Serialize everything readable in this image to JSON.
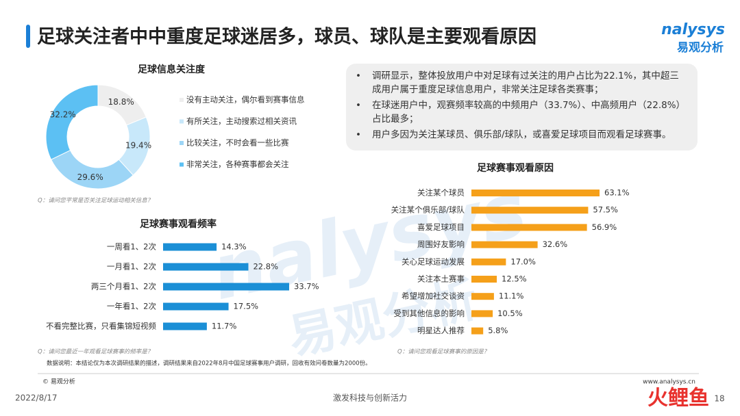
{
  "header": {
    "title": "足球关注者中中重度足球迷居多，球员、球队是主要观看原因",
    "logo_en": "nalysys",
    "logo_cn": "易观分析"
  },
  "bullets": [
    "调研显示，整体投放用户中对足球有过关注的用户占比为22.1%，其中超三成用户属于重度足球信息用户，非常关注足球各类赛事；",
    "在球迷用户中，观赛频率较高的中频用户（33.7%）、中高频用户（22.8%）占比最多；",
    "用户多因为关注某球员、俱乐部/球队，或喜爱足球项目而观看足球赛事。"
  ],
  "chart_data": [
    {
      "type": "donut",
      "title": "足球信息关注度",
      "categories": [
        "没有主动关注，偶尔看到赛事信息",
        "有所关注，主动搜索过相关资讯",
        "比较关注，不时会看一些比赛",
        "非常关注，各种赛事都会关注"
      ],
      "values": [
        18.8,
        19.4,
        29.6,
        32.2
      ],
      "value_labels": [
        "18.8%",
        "19.4%",
        "29.6%",
        "32.2%"
      ],
      "colors": [
        "#eeeeee",
        "#c8e8fa",
        "#9cd5f6",
        "#5cc0f3"
      ],
      "note": "Q：请问您平常是否关注足球运动相关信息？"
    },
    {
      "type": "hbar",
      "title": "足球赛事观看频率",
      "categories": [
        "一周看1、2次",
        "一月看1、2次",
        "两三个月看1、2次",
        "一年看1、2次",
        "不看完整比赛，只看集锦短视频"
      ],
      "values": [
        14.3,
        22.8,
        33.7,
        17.5,
        11.7
      ],
      "value_labels": [
        "14.3%",
        "22.8%",
        "33.7%",
        "17.5%",
        "11.7%"
      ],
      "color": "#1b8fd6",
      "note": "Q：请问您最近一年观看足球赛事的频率是？"
    },
    {
      "type": "hbar",
      "title": "足球赛事观看原因",
      "categories": [
        "关注某个球员",
        "关注某个俱乐部/球队",
        "喜爱足球项目",
        "周围好友影响",
        "关心足球运动发展",
        "关注本土赛事",
        "希望增加社交谈资",
        "受到其他信息的影响",
        "明星达人推荐"
      ],
      "values": [
        63.1,
        57.5,
        56.9,
        32.6,
        17.0,
        12.5,
        11.1,
        10.5,
        5.8
      ],
      "value_labels": [
        "63.1%",
        "57.5%",
        "56.9%",
        "32.6%",
        "17.0%",
        "12.5%",
        "11.1%",
        "10.5%",
        "5.8%"
      ],
      "color": "#f5a01a",
      "note": "Q：请问您观看足球赛事的原因是？"
    }
  ],
  "data_note": "数据说明：本结论仅为本次调研结果的描述，调研结果来自2022年8月中国足球赛事用户调研，回收有效问卷数量为2000份。",
  "footer": {
    "copyright": "© 易观分析",
    "url": "www.analysys.cn",
    "date": "2022/8/17",
    "slogan": "激发科技与创新活力",
    "page": "18",
    "brand": "火鲤鱼"
  },
  "watermark": {
    "en": "nalysys",
    "cn": "易观分析"
  }
}
